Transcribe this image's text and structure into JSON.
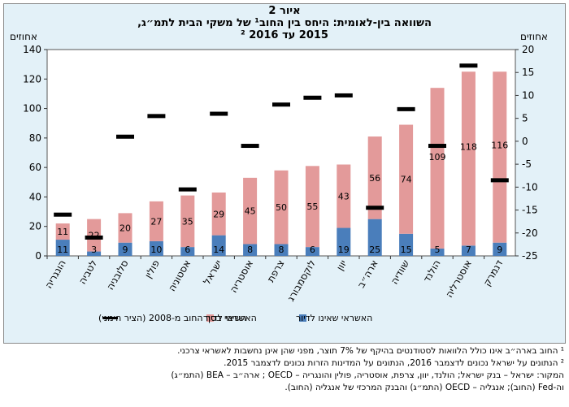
{
  "header": {
    "figure_label": "איור 2",
    "title_line1": "השוואה בין-לאומית: היחס בין החוב¹ של משקי הבית לתמ״ג,",
    "title_line2": "2015 עד 2016 ²"
  },
  "chart_data": {
    "type": "bar",
    "categories": [
      "הונגריה",
      "לטביה",
      "סלובניה",
      "פולין",
      "אסטוניה",
      "ישראל",
      "אוסטריה",
      "צרפת",
      "לוקסמבורג",
      "יוון",
      "ארה״ב",
      "שוודיה",
      "הולנד",
      "אוסטרליה",
      "דנמרק"
    ],
    "series": [
      {
        "name": "האשראי שאינו לדיור",
        "color": "#4a7ebb",
        "axis": "left",
        "values": [
          11,
          3,
          9,
          10,
          6,
          14,
          8,
          8,
          6,
          19,
          25,
          15,
          5,
          7,
          9
        ]
      },
      {
        "name": "האשראי לדיור",
        "color": "#e39a9a",
        "axis": "left",
        "values": [
          11,
          22,
          20,
          27,
          35,
          29,
          45,
          50,
          55,
          43,
          56,
          74,
          109,
          118,
          116
        ]
      },
      {
        "name": "השינוי בסך החוב מ-2008 (הציר הימני)",
        "color": "#000000",
        "axis": "right",
        "values": [
          -16,
          -21,
          1,
          5.5,
          -10.5,
          6,
          -1,
          8,
          9.5,
          10,
          -14.5,
          7,
          -1,
          16.5,
          -8.5
        ]
      }
    ],
    "stacked_labels": {
      "bottom": [
        "11",
        "3",
        "9",
        "10",
        "6",
        "14",
        "8",
        "8",
        "6",
        "19",
        "25",
        "15",
        "5",
        "7",
        "9"
      ],
      "top": [
        "11",
        "22",
        "20",
        "27",
        "35",
        "29",
        "45",
        "50",
        "55",
        "43",
        "56",
        "74",
        "109",
        "118",
        "116"
      ]
    },
    "ylabel_left": "אחוזים",
    "ylabel_right": "אחוזים",
    "ylim_left": [
      0,
      140
    ],
    "ylim_right": [
      -25,
      20
    ],
    "yticks_left": [
      "0",
      "20",
      "40",
      "60",
      "80",
      "100",
      "120",
      "140"
    ],
    "yticks_right": [
      "-25",
      "-20",
      "-15",
      "-10",
      "-5",
      "0",
      "5",
      "10",
      "15",
      "20"
    ],
    "grid": false,
    "legend_placement": "bottom",
    "legend_items": [
      {
        "label": "האשראי שאינו לדיור",
        "color": "#4a7ebb"
      },
      {
        "label": "האשראי לדיור",
        "color": "#e39a9a"
      },
      {
        "label": "השינוי בסך החוב מ-2008 (הציר הימני)",
        "color": "#000000"
      }
    ]
  },
  "notes": {
    "note1": "¹ החוב בארה״ב אינו כולל הלוואות לסטודנטים בהיקף של 7% תוצר, מפני שהן אינן נחשבות לאשראי צרכני.",
    "note2": "² הנתונים על ישראל נכונים לדצמבר 2016, הנתונים על המדינות הזרות נכונים לדצמבר 2015.",
    "source1": "המקור: ישראל – בנק ישראל; הולנד, יוון, צרפת, אוסטריה, פולין והונגריה – OECD ; ארה״ב – BEA (התמ״ג)",
    "source2": "וה-Fed (החוב); אנגליה – OECD (התמ״ג) והבנק המרכזי של אנגליה (החוב)."
  }
}
